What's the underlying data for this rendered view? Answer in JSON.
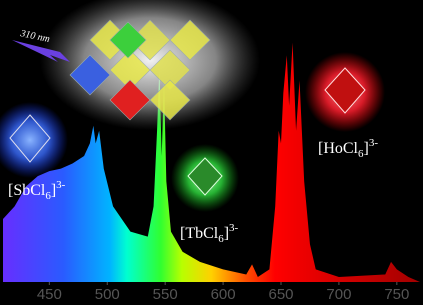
{
  "chart_data": {
    "type": "area",
    "x": [
      410,
      420,
      430,
      440,
      450,
      460,
      470,
      480,
      485,
      488,
      490,
      493,
      497,
      505,
      520,
      535,
      540,
      543,
      545,
      547,
      549,
      551,
      555,
      565,
      580,
      600,
      620,
      625,
      630,
      640,
      645,
      648,
      650,
      652,
      655,
      657,
      660,
      663,
      666,
      670,
      675,
      680,
      700,
      740,
      745,
      750,
      760,
      770
    ],
    "values": [
      0.25,
      0.3,
      0.38,
      0.42,
      0.44,
      0.45,
      0.47,
      0.5,
      0.55,
      0.62,
      0.55,
      0.6,
      0.45,
      0.3,
      0.2,
      0.18,
      0.3,
      0.6,
      0.85,
      0.5,
      0.8,
      0.4,
      0.2,
      0.12,
      0.08,
      0.05,
      0.03,
      0.07,
      0.02,
      0.05,
      0.3,
      0.6,
      0.55,
      0.75,
      0.9,
      0.7,
      0.95,
      0.6,
      0.8,
      0.4,
      0.15,
      0.05,
      0.02,
      0.03,
      0.08,
      0.05,
      0.02,
      0
    ],
    "xlim": [
      410,
      770
    ],
    "xticks": [
      450,
      500,
      550,
      600,
      650,
      700,
      750
    ],
    "ylim": [
      0,
      1
    ],
    "annotations": [
      {
        "parts": [
          "310 nm"
        ]
      },
      {
        "parts": [
          "[SbCl",
          "6",
          "]",
          "3-"
        ]
      },
      {
        "parts": [
          "[TbCl",
          "6",
          "]",
          "3-"
        ]
      },
      {
        "parts": [
          "[HoCl",
          "6",
          "]",
          "3-"
        ]
      }
    ]
  }
}
